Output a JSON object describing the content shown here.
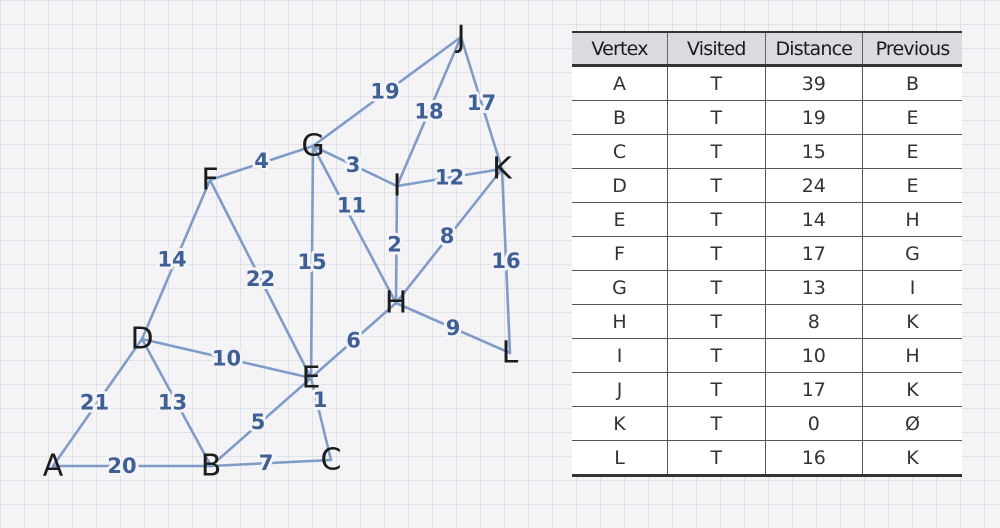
{
  "graph": {
    "vertices": [
      {
        "id": "A"
      },
      {
        "id": "B"
      },
      {
        "id": "C"
      },
      {
        "id": "D"
      },
      {
        "id": "E"
      },
      {
        "id": "F"
      },
      {
        "id": "G"
      },
      {
        "id": "H"
      },
      {
        "id": "I"
      },
      {
        "id": "J"
      },
      {
        "id": "K"
      },
      {
        "id": "L"
      }
    ],
    "edges": [
      {
        "from": "A",
        "to": "D",
        "weight": "21"
      },
      {
        "from": "A",
        "to": "B",
        "weight": "20"
      },
      {
        "from": "D",
        "to": "B",
        "weight": "13"
      },
      {
        "from": "D",
        "to": "F",
        "weight": "14"
      },
      {
        "from": "D",
        "to": "E",
        "weight": "10"
      },
      {
        "from": "B",
        "to": "E",
        "weight": "5"
      },
      {
        "from": "B",
        "to": "C",
        "weight": "7"
      },
      {
        "from": "E",
        "to": "C",
        "weight": "1"
      },
      {
        "from": "F",
        "to": "E",
        "weight": "22"
      },
      {
        "from": "F",
        "to": "G",
        "weight": "4"
      },
      {
        "from": "G",
        "to": "E",
        "weight": "15"
      },
      {
        "from": "G",
        "to": "H",
        "weight": "11"
      },
      {
        "from": "G",
        "to": "I",
        "weight": "3"
      },
      {
        "from": "G",
        "to": "J",
        "weight": "19"
      },
      {
        "from": "E",
        "to": "H",
        "weight": "6"
      },
      {
        "from": "I",
        "to": "H",
        "weight": "2"
      },
      {
        "from": "I",
        "to": "J",
        "weight": "18"
      },
      {
        "from": "I",
        "to": "K",
        "weight": "12"
      },
      {
        "from": "J",
        "to": "K",
        "weight": "17"
      },
      {
        "from": "K",
        "to": "H",
        "weight": "8"
      },
      {
        "from": "K",
        "to": "L",
        "weight": "16"
      },
      {
        "from": "H",
        "to": "L",
        "weight": "9"
      }
    ]
  },
  "table": {
    "headers": [
      "Vertex",
      "Visited",
      "Distance",
      "Previous"
    ],
    "rows": [
      [
        "A",
        "T",
        "39",
        "B"
      ],
      [
        "B",
        "T",
        "19",
        "E"
      ],
      [
        "C",
        "T",
        "15",
        "E"
      ],
      [
        "D",
        "T",
        "24",
        "E"
      ],
      [
        "E",
        "T",
        "14",
        "H"
      ],
      [
        "F",
        "T",
        "17",
        "G"
      ],
      [
        "G",
        "T",
        "13",
        "I"
      ],
      [
        "H",
        "T",
        "8",
        "K"
      ],
      [
        "I",
        "T",
        "10",
        "H"
      ],
      [
        "J",
        "T",
        "17",
        "K"
      ],
      [
        "K",
        "T",
        "0",
        "Ø"
      ],
      [
        "L",
        "T",
        "16",
        "K"
      ]
    ]
  },
  "colors": {
    "edge": "#7f9cc9",
    "weight_label": "#3f5f97",
    "vertex_label": "#1c1c1c",
    "table_header_bg": "#dadbe0"
  }
}
